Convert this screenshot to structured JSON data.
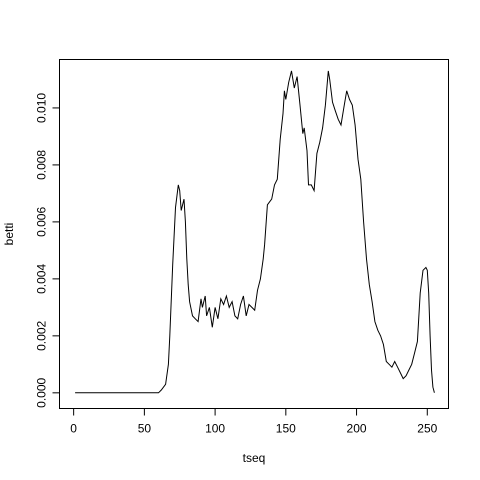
{
  "chart_data": {
    "type": "line",
    "title": "",
    "xlabel": "tseq",
    "ylabel": "betti",
    "xlim": [
      -10,
      265
    ],
    "ylim": [
      -0.00055,
      0.0117
    ],
    "x_ticks": [
      0,
      50,
      100,
      150,
      200,
      250
    ],
    "x_tick_labels": [
      "0",
      "50",
      "100",
      "150",
      "200",
      "250"
    ],
    "y_ticks": [
      0,
      0.002,
      0.004,
      0.006,
      0.008,
      0.01
    ],
    "y_tick_labels": [
      "0.000",
      "0.002",
      "0.004",
      "0.006",
      "0.008",
      "0.010"
    ],
    "grid": false,
    "series": [
      {
        "x": [
          1,
          20,
          40,
          50,
          55,
          60,
          62,
          65,
          67,
          68,
          70,
          72,
          74,
          75,
          76,
          78,
          79,
          80,
          81,
          82,
          84,
          86,
          88,
          90,
          91,
          93,
          94,
          96,
          98,
          100,
          102,
          104,
          106,
          108,
          110,
          112,
          114,
          116,
          118,
          120,
          122,
          124,
          126,
          128,
          130,
          132,
          134,
          135,
          137,
          140,
          142,
          144,
          146,
          148,
          149,
          150,
          152,
          154,
          156,
          158,
          160,
          162,
          163,
          165,
          166,
          168,
          170,
          172,
          174,
          176,
          178,
          180,
          181,
          183,
          185,
          187,
          189,
          191,
          193,
          195,
          197,
          199,
          201,
          203,
          205,
          207,
          209,
          211,
          213,
          215,
          217,
          219,
          221,
          223,
          225,
          227,
          229,
          231,
          233,
          235,
          237,
          239,
          241,
          243,
          245,
          247,
          249,
          250,
          251,
          252,
          253,
          254,
          255
        ],
        "y": [
          0,
          0,
          0,
          0,
          0,
          0,
          0.0001,
          0.0003,
          0.001,
          0.002,
          0.0045,
          0.0065,
          0.0073,
          0.0071,
          0.0064,
          0.0068,
          0.006,
          0.0047,
          0.0038,
          0.0032,
          0.0027,
          0.0026,
          0.0025,
          0.0033,
          0.003,
          0.0034,
          0.0027,
          0.003,
          0.0023,
          0.003,
          0.0026,
          0.0033,
          0.0031,
          0.0034,
          0.003,
          0.0032,
          0.0027,
          0.0026,
          0.0031,
          0.0034,
          0.0027,
          0.0031,
          0.003,
          0.0029,
          0.0036,
          0.004,
          0.0047,
          0.0052,
          0.0066,
          0.0068,
          0.0073,
          0.0075,
          0.0089,
          0.0098,
          0.0106,
          0.0103,
          0.0109,
          0.0113,
          0.0107,
          0.0111,
          0.0101,
          0.0091,
          0.0093,
          0.0085,
          0.0073,
          0.0073,
          0.0071,
          0.0084,
          0.0088,
          0.0093,
          0.0101,
          0.0113,
          0.011,
          0.0102,
          0.0099,
          0.0096,
          0.0094,
          0.01,
          0.0106,
          0.0103,
          0.0101,
          0.0094,
          0.0082,
          0.0075,
          0.006,
          0.0047,
          0.0038,
          0.0032,
          0.0025,
          0.0022,
          0.002,
          0.0017,
          0.0011,
          0.001,
          0.0009,
          0.0011,
          0.0009,
          0.0007,
          0.0005,
          0.0006,
          0.0008,
          0.001,
          0.0014,
          0.0018,
          0.0035,
          0.0043,
          0.0044,
          0.0043,
          0.0035,
          0.002,
          0.0008,
          0.0002,
          0
        ]
      }
    ]
  }
}
